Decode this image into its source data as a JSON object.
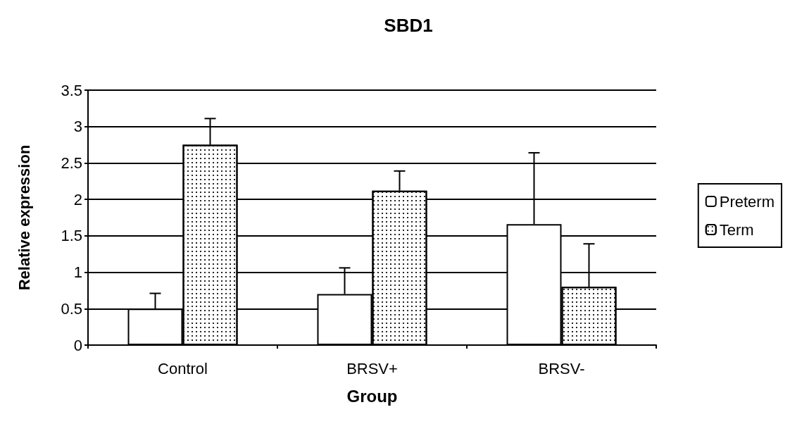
{
  "chart_data": {
    "type": "bar",
    "title": "SBD1",
    "xlabel": "Group",
    "ylabel": "Relative expression",
    "categories": [
      "Control",
      "BRSV+",
      "BRSV-"
    ],
    "series": [
      {
        "name": "Preterm",
        "color": "#ffffff",
        "values": [
          0.5,
          0.7,
          1.66
        ],
        "errors": [
          [
            0.5,
            0.71
          ],
          [
            0.7,
            1.06
          ],
          [
            1.66,
            2.64
          ]
        ]
      },
      {
        "name": "Term",
        "color": "#ffffff",
        "values": [
          2.75,
          2.12,
          0.8
        ],
        "errors": [
          [
            2.75,
            3.11
          ],
          [
            2.12,
            2.39
          ],
          [
            0.8,
            1.39
          ]
        ]
      }
    ],
    "ylim": [
      0,
      3.5
    ],
    "yticks": [
      0,
      0.5,
      1,
      1.5,
      2,
      2.5,
      3,
      3.5
    ],
    "grid": "y",
    "legend": "right"
  }
}
